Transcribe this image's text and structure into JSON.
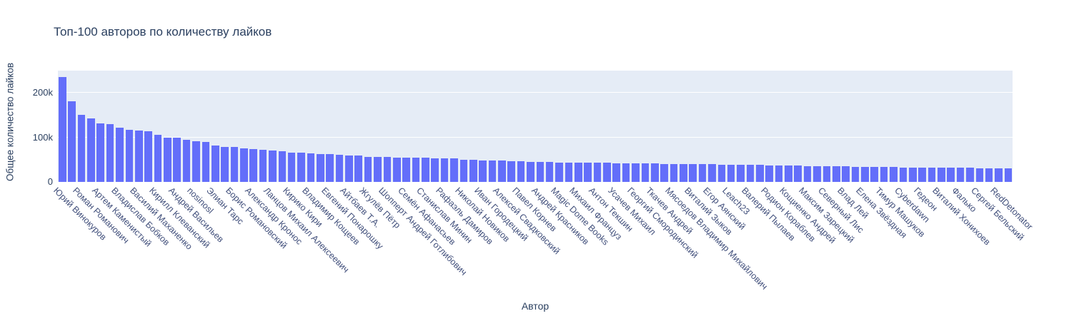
{
  "chart_data": {
    "type": "bar",
    "title": "Топ-100 авторов по количеству лайков",
    "xlabel": "Автор",
    "ylabel": "Общее количество лайков",
    "ylim": [
      0,
      248000
    ],
    "ytick_labels": [
      "0",
      "100k",
      "200k"
    ],
    "ytick_values": [
      0,
      100000,
      200000
    ],
    "grid": "horizontal white gridlines on light plot background",
    "legend": "none",
    "bar_count": 100,
    "tick_note": "x tick labels are shown for every other bar (1st, 3rd, 5th, ...)",
    "categories_shown": [
      "Юрий Винокуров",
      "Роман Романович",
      "Артем Каменистый",
      "Владислав Бобков",
      "Василий Маханенко",
      "Кирилл Клеванский",
      "Андрей Васильев",
      "nosinosl",
      "Элиан Тарс",
      "Борис Романовский",
      "Александр Кронос",
      "Ланцов Михаил Алексеевич",
      "Кирико Кири",
      "Владимир Кощеев",
      "Евгений Понарошку",
      "Айтбаев Т.А.",
      "Жгулёв Пётр",
      "Шопперт Андрей Готлибович",
      "Семён Афанасьев",
      "Станислав Минин",
      "Рафаэль Дамиров",
      "Николай Новиков",
      "Иван Городецкий",
      "Алексей Свадковский",
      "Павел Корнев",
      "Андрей Красников",
      "Magic Dome Books",
      "Михаил Француз",
      "Антон Текшин",
      "Усачев Михаил",
      "Георгий Смородинский",
      "Ткачев Андрей",
      "Мясоедов Владимир Михайлович",
      "Виталий Зыков",
      "Егор Аянский",
      "Leach23",
      "Валерий Пылаев",
      "Родион Кораблев",
      "Кощиенко Андрей",
      "Максим Зарецкий",
      "Северный Лис",
      "Влад Лей",
      "Елена Звёздная",
      "Тимур Машуков",
      "Cyberdawn",
      "Гедеон",
      "Виталий Хонихоев",
      "Фалько",
      "Сергей Бельский",
      "RedDetonator"
    ],
    "values": [
      235000,
      181000,
      150000,
      142500,
      132000,
      130000,
      121000,
      117500,
      115000,
      113000,
      105500,
      100000,
      99500,
      94500,
      91500,
      90000,
      82000,
      79000,
      78000,
      76000,
      74000,
      72000,
      70500,
      69000,
      65500,
      65000,
      64000,
      63000,
      62000,
      61000,
      59000,
      58500,
      56500,
      56000,
      55500,
      55200,
      55000,
      54500,
      54000,
      53500,
      53200,
      53000,
      50000,
      49500,
      48800,
      48200,
      47600,
      47000,
      46200,
      45500,
      44800,
      44400,
      44000,
      43700,
      43400,
      43100,
      42800,
      42500,
      42200,
      42000,
      41700,
      41400,
      41100,
      40800,
      40500,
      40200,
      39900,
      39600,
      39300,
      39000,
      38700,
      38400,
      38100,
      37800,
      37500,
      37100,
      36700,
      36300,
      35900,
      35500,
      35200,
      34900,
      34600,
      34300,
      34000,
      33700,
      33400,
      33100,
      32800,
      32500,
      32300,
      32100,
      31900,
      31700,
      31500,
      31300,
      31000,
      30700,
      30400,
      30000
    ],
    "colors": {
      "bar": "#636efa",
      "plot_bg": "#e5ecf6",
      "paper_bg": "#ffffff",
      "text": "#2a3f5f",
      "tick_text": "#42507c",
      "grid": "#ffffff"
    }
  }
}
